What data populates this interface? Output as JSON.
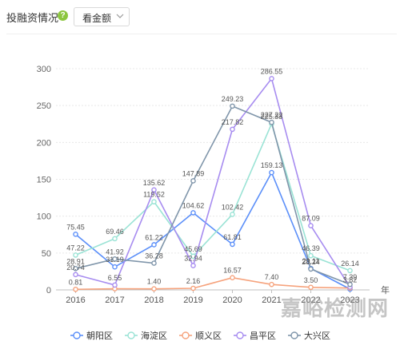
{
  "header": {
    "title": "投融资情况",
    "help_icon": "question-circle-icon",
    "select": {
      "value": "看金额",
      "icon": "chevron-down-icon"
    }
  },
  "watermark": "嘉峪检测网",
  "chart_data": {
    "type": "line",
    "title": "",
    "xlabel": "年",
    "ylabel": "",
    "x": [
      "2016",
      "2017",
      "2018",
      "2019",
      "2020",
      "2021",
      "2022",
      "2023"
    ],
    "ylim": [
      0,
      300
    ],
    "yticks": [
      0,
      50,
      100,
      150,
      200,
      250,
      300
    ],
    "grid": true,
    "legend_position": "bottom",
    "series": [
      {
        "name": "朝阳区",
        "color": "#5b8ff9",
        "values": [
          75.45,
          31.19,
          61.22,
          104.62,
          61.81,
          159.13,
          29.11,
          1.1
        ],
        "labels": [
          "75.45",
          "31.19",
          "61.22",
          "104.62",
          "61.81",
          "159.13",
          "29.11",
          ""
        ]
      },
      {
        "name": "海淀区",
        "color": "#9ae3d5",
        "values": [
          47.22,
          69.46,
          119.52,
          45.69,
          102.42,
          225.33,
          46.39,
          26.14
        ],
        "labels": [
          "47.22",
          "69.46",
          "119.52",
          "45.69",
          "102.42",
          "225.33",
          "46.39",
          "26.14"
        ]
      },
      {
        "name": "顺义区",
        "color": "#f6a37d",
        "values": [
          0.81,
          1.55,
          1.4,
          2.16,
          16.57,
          7.4,
          3.5,
          2.55
        ],
        "labels": [
          "0.81",
          "",
          "1.40",
          "2.16",
          "16.57",
          "7.40",
          "3.50",
          ""
        ]
      },
      {
        "name": "昌平区",
        "color": "#a78cf0",
        "values": [
          20.74,
          6.55,
          135.62,
          32.94,
          217.82,
          286.55,
          87.09,
          3.82
        ],
        "labels": [
          "20.74",
          "6.55",
          "135.62",
          "32.94",
          "217.82",
          "286.55",
          "87.09",
          "3.82"
        ]
      },
      {
        "name": "大兴区",
        "color": "#7f95aa",
        "values": [
          28.91,
          41.92,
          36.28,
          147.89,
          249.23,
          227.22,
          28.24,
          7.39
        ],
        "labels": [
          "28.91",
          "41.92",
          "36.28",
          "147.89",
          "249.23",
          "227.22",
          "28.24",
          "7.39"
        ]
      }
    ]
  }
}
